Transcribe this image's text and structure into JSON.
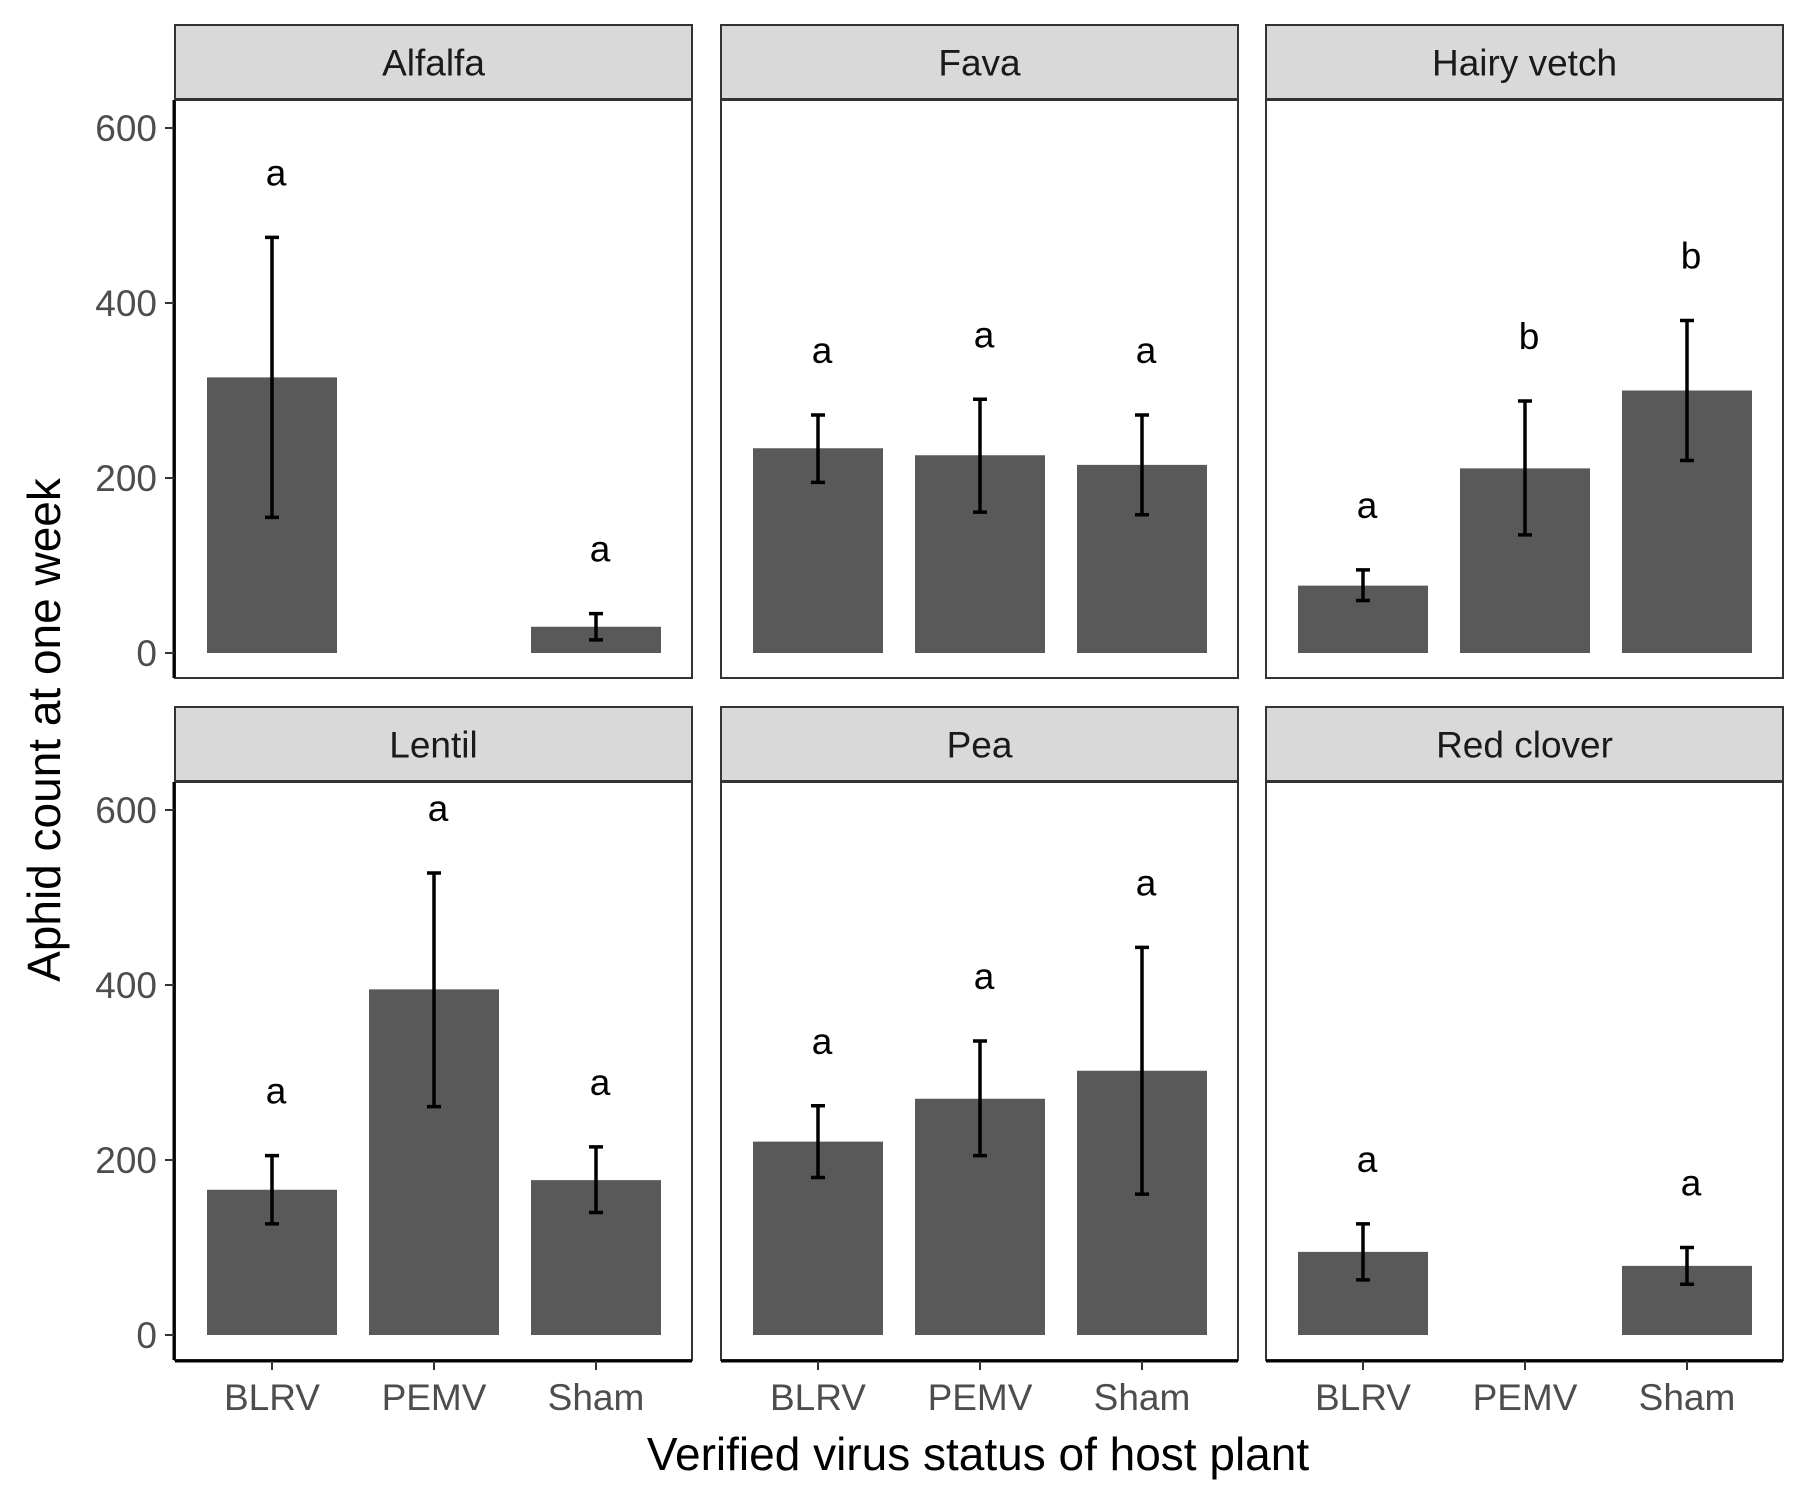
{
  "chart_data": {
    "type": "bar",
    "xlabel": "Verified virus status of host plant",
    "ylabel": "Aphid count at one week",
    "categories": [
      "BLRV",
      "PEMV",
      "Sham"
    ],
    "ylim": [
      0,
      600
    ],
    "yticks": [
      "0",
      "200",
      "400",
      "600"
    ],
    "facet_layout": "2 rows x 3 columns, shared axes",
    "bar_color": "#595959",
    "strip_color": "#d9d9d9",
    "panels": [
      {
        "name": "Alfalfa",
        "bars": [
          {
            "category": "BLRV",
            "value": 315,
            "error_low": 155,
            "error_high": 475,
            "letter": "a"
          },
          {
            "category": "Sham",
            "value": 30,
            "error_low": 15,
            "error_high": 45,
            "letter": "a"
          }
        ]
      },
      {
        "name": "Fava",
        "bars": [
          {
            "category": "BLRV",
            "value": 234,
            "error_low": 195,
            "error_high": 272,
            "letter": "a"
          },
          {
            "category": "PEMV",
            "value": 226,
            "error_low": 161,
            "error_high": 290,
            "letter": "a"
          },
          {
            "category": "Sham",
            "value": 215,
            "error_low": 158,
            "error_high": 272,
            "letter": "a"
          }
        ]
      },
      {
        "name": "Hairy vetch",
        "bars": [
          {
            "category": "BLRV",
            "value": 77,
            "error_low": 60,
            "error_high": 95,
            "letter": "a"
          },
          {
            "category": "PEMV",
            "value": 211,
            "error_low": 135,
            "error_high": 288,
            "letter": "b"
          },
          {
            "category": "Sham",
            "value": 300,
            "error_low": 220,
            "error_high": 380,
            "letter": "b"
          }
        ]
      },
      {
        "name": "Lentil",
        "bars": [
          {
            "category": "BLRV",
            "value": 166,
            "error_low": 127,
            "error_high": 205,
            "letter": "a"
          },
          {
            "category": "PEMV",
            "value": 395,
            "error_low": 261,
            "error_high": 528,
            "letter": "a"
          },
          {
            "category": "Sham",
            "value": 177,
            "error_low": 140,
            "error_high": 215,
            "letter": "a"
          }
        ]
      },
      {
        "name": "Pea",
        "bars": [
          {
            "category": "BLRV",
            "value": 221,
            "error_low": 180,
            "error_high": 262,
            "letter": "a"
          },
          {
            "category": "PEMV",
            "value": 270,
            "error_low": 205,
            "error_high": 336,
            "letter": "a"
          },
          {
            "category": "Sham",
            "value": 302,
            "error_low": 161,
            "error_high": 443,
            "letter": "a"
          }
        ]
      },
      {
        "name": "Red clover",
        "bars": [
          {
            "category": "BLRV",
            "value": 95,
            "error_low": 63,
            "error_high": 127,
            "letter": "a"
          },
          {
            "category": "Sham",
            "value": 79,
            "error_low": 58,
            "error_high": 100,
            "letter": "a"
          }
        ]
      }
    ]
  }
}
